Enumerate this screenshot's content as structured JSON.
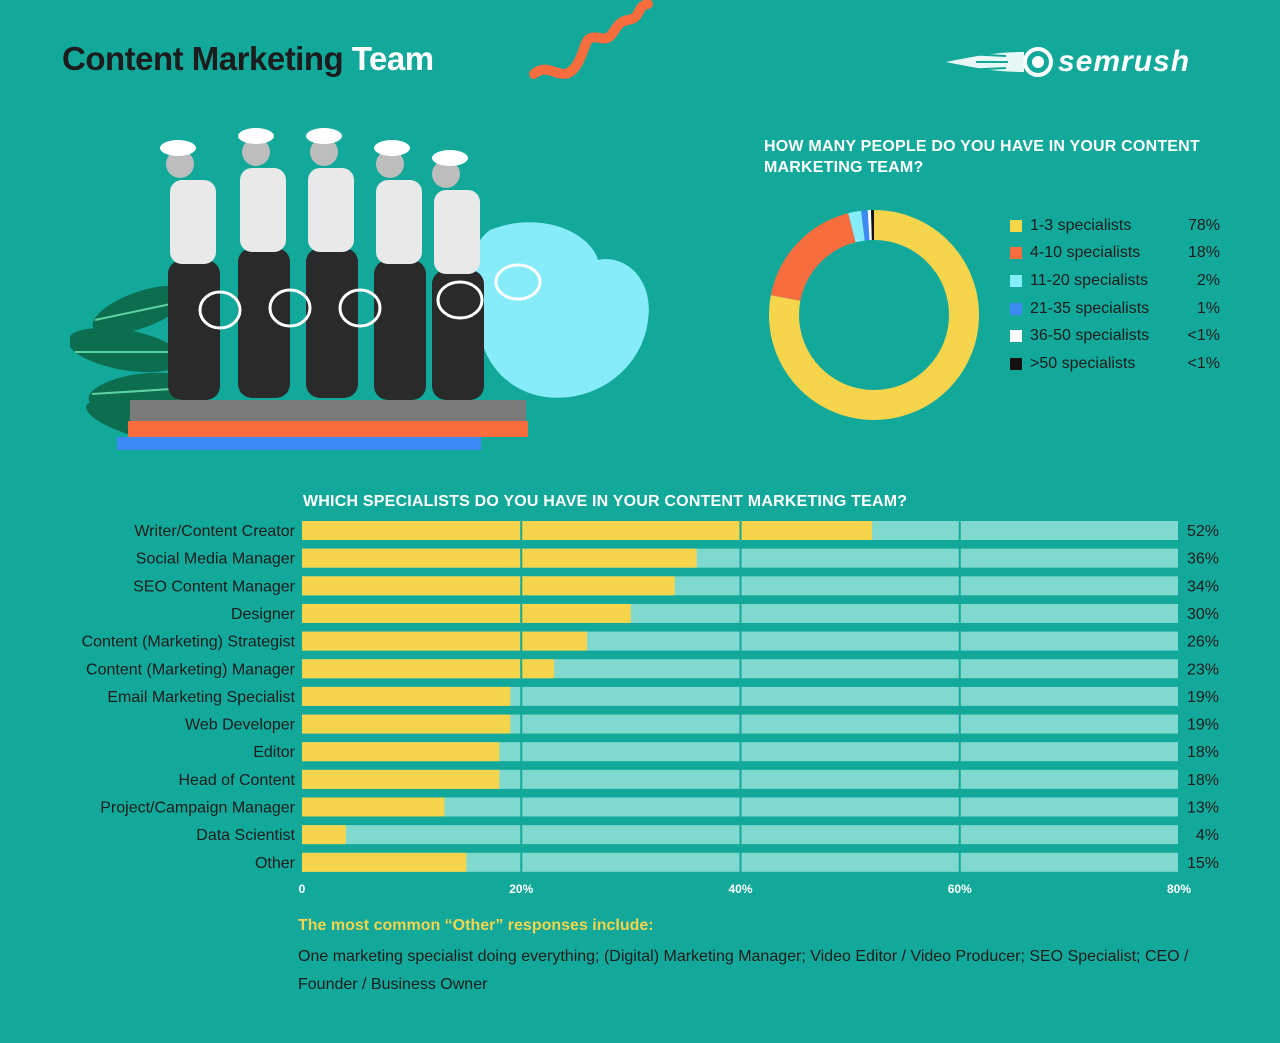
{
  "header": {
    "title_dark": "Content Marketing",
    "title_light": "Team",
    "logo_text": "semrush",
    "logo_icon": "semrush-fireball-icon"
  },
  "colors": {
    "background": "#12a99a",
    "bar_fill": "#f6d44c",
    "bar_track": "#7fd9cf",
    "accent_orange": "#f86d3d",
    "accent_blue": "#3d8af7",
    "accent_cyan": "#87ecf9"
  },
  "illustration": {
    "description_icon": "vintage-tennis-players-photo-icon"
  },
  "chart_data": [
    {
      "type": "pie",
      "title": "HOW MANY PEOPLE DO YOU HAVE IN YOUR CONTENT MARKETING TEAM?",
      "categories": [
        "1-3 specialists",
        "4-10 specialists",
        "11-20 specialists",
        "21-35 specialists",
        "36-50 specialists",
        ">50 specialists"
      ],
      "values": [
        78,
        18,
        2,
        1,
        0.5,
        0.5
      ],
      "value_labels": [
        "78%",
        "18%",
        "2%",
        "1%",
        "<1%",
        "<1%"
      ],
      "colors": [
        "#f6d44c",
        "#f86d3d",
        "#87ecf9",
        "#3d8af7",
        "#ffffff",
        "#111111"
      ],
      "legend": "right"
    },
    {
      "type": "bar",
      "orientation": "horizontal",
      "title": "WHICH SPECIALISTS DO YOU HAVE IN YOUR CONTENT MARKETING TEAM?",
      "categories": [
        "Writer/Content Creator",
        "Social Media Manager",
        "SEO Content Manager",
        "Designer",
        "Content (Marketing) Strategist",
        "Content (Marketing) Manager",
        "Email Marketing Specialist",
        "Web Developer",
        "Editor",
        "Head of Content",
        "Project/Campaign Manager",
        "Data Scientist",
        "Other"
      ],
      "values": [
        52,
        36,
        34,
        30,
        26,
        23,
        19,
        19,
        18,
        18,
        13,
        4,
        15
      ],
      "value_labels": [
        "52%",
        "36%",
        "34%",
        "30%",
        "26%",
        "23%",
        "19%",
        "19%",
        "18%",
        "18%",
        "13%",
        "4%",
        "15%"
      ],
      "xlim": [
        0,
        80
      ],
      "x_ticks": [
        "0",
        "20%",
        "40%",
        "60%",
        "80%"
      ],
      "grid": true
    }
  ],
  "footnote": {
    "title": "The most common “Other” responses include:",
    "body": "One marketing specialist doing everything; (Digital) Marketing Manager; Video Editor / Video Producer; SEO Specialist; CEO / Founder / Business Owner"
  }
}
